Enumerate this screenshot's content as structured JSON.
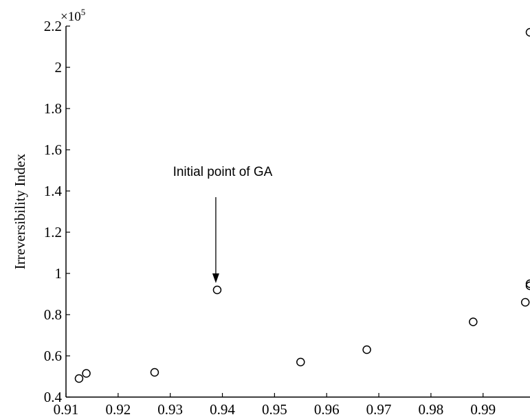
{
  "chart_data": {
    "type": "scatter",
    "title": "",
    "xlabel": "",
    "ylabel": "Irreversibility Index",
    "y_multiplier": "×10",
    "y_multiplier_exponent": "5",
    "xlim": [
      0.91,
      0.999
    ],
    "ylim": [
      0.4,
      2.2
    ],
    "x_ticks": [
      "0.91",
      "0.92",
      "0.93",
      "0.94",
      "0.95",
      "0.96",
      "0.97",
      "0.98",
      "0.99"
    ],
    "x_tick_values": [
      0.91,
      0.92,
      0.93,
      0.94,
      0.95,
      0.96,
      0.97,
      0.98,
      0.99
    ],
    "y_ticks": [
      "0.4",
      "0.6",
      "0.8",
      "1",
      "1.2",
      "1.4",
      "1.6",
      "1.8",
      "2",
      "2.2"
    ],
    "y_tick_values": [
      0.4,
      0.6,
      0.8,
      1.0,
      1.2,
      1.4,
      1.6,
      1.8,
      2.0,
      2.2
    ],
    "grid": false,
    "marker": "open-circle",
    "points": [
      {
        "x": 0.9125,
        "y": 0.49
      },
      {
        "x": 0.9139,
        "y": 0.515
      },
      {
        "x": 0.927,
        "y": 0.52
      },
      {
        "x": 0.939,
        "y": 0.92
      },
      {
        "x": 0.955,
        "y": 0.57
      },
      {
        "x": 0.9677,
        "y": 0.63
      },
      {
        "x": 0.9881,
        "y": 0.765
      },
      {
        "x": 0.9981,
        "y": 0.86
      },
      {
        "x": 0.999,
        "y": 0.94
      },
      {
        "x": 0.999,
        "y": 0.95
      },
      {
        "x": 0.999,
        "y": 2.17
      }
    ],
    "annotation": {
      "text": "Initial point of GA",
      "target": {
        "x": 0.939,
        "y": 0.92
      }
    }
  }
}
